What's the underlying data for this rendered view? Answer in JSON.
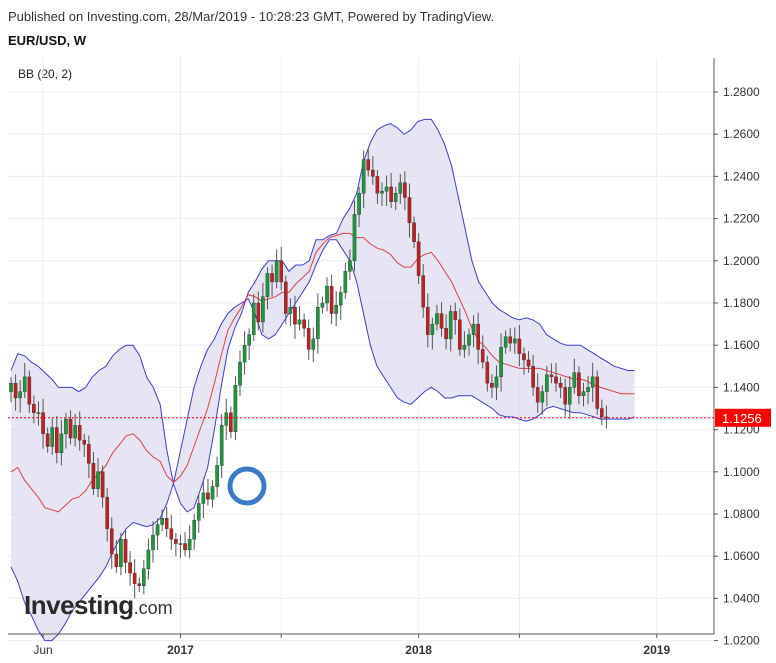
{
  "header": {
    "published": "Published on Investing.com, 28/Mar/2019 - 10:28:23 GMT, Powered by TradingView.",
    "symbol": "EUR/USD, W",
    "indicator": "BB (20, 2)"
  },
  "logo": {
    "main": "Investing",
    "suffix": ".com"
  },
  "colors": {
    "up": "#1a9a3a",
    "down": "#c41e1e",
    "band": "#3d3dd6",
    "band_fill": "#dcdcf0",
    "mid": "#e04040",
    "last_price": "#ff0000"
  },
  "chart_data": {
    "type": "candlestick",
    "title": "EUR/USD, W",
    "ylim": [
      1.014,
      1.294
    ],
    "y_ticks": [
      "1.2800",
      "1.2600",
      "1.2400",
      "1.2200",
      "1.2000",
      "1.1800",
      "1.1600",
      "1.1400",
      "1.1200",
      "1.1000",
      "1.0800",
      "1.0600",
      "1.0400",
      "1.0200"
    ],
    "x_ticks": [
      {
        "label": "Jun",
        "week": 7
      },
      {
        "label": "2017",
        "week": 37
      },
      {
        "label": "",
        "week": 59
      },
      {
        "label": "2018",
        "week": 89
      },
      {
        "label": "",
        "week": 111
      },
      {
        "label": "2019",
        "week": 141
      }
    ],
    "last_price": {
      "value": 1.1256,
      "label": "1.1256"
    },
    "candle_close": [
      1.142,
      1.135,
      1.138,
      1.145,
      1.132,
      1.128,
      1.128,
      1.118,
      1.112,
      1.121,
      1.109,
      1.118,
      1.125,
      1.116,
      1.122,
      1.115,
      1.113,
      1.104,
      1.092,
      1.1,
      1.088,
      1.073,
      1.061,
      1.055,
      1.068,
      1.057,
      1.052,
      1.047,
      1.046,
      1.054,
      1.063,
      1.07,
      1.075,
      1.078,
      1.073,
      1.068,
      1.066,
      1.066,
      1.063,
      1.068,
      1.077,
      1.085,
      1.09,
      1.087,
      1.093,
      1.103,
      1.122,
      1.128,
      1.119,
      1.141,
      1.152,
      1.16,
      1.165,
      1.18,
      1.171,
      1.183,
      1.194,
      1.19,
      1.2,
      1.19,
      1.175,
      1.178,
      1.17,
      1.172,
      1.168,
      1.158,
      1.163,
      1.178,
      1.18,
      1.188,
      1.175,
      1.179,
      1.185,
      1.195,
      1.2,
      1.222,
      1.232,
      1.248,
      1.243,
      1.24,
      1.232,
      1.233,
      1.235,
      1.228,
      1.232,
      1.237,
      1.23,
      1.218,
      1.209,
      1.193,
      1.178,
      1.165,
      1.17,
      1.175,
      1.168,
      1.163,
      1.176,
      1.172,
      1.158,
      1.16,
      1.165,
      1.17,
      1.158,
      1.152,
      1.142,
      1.14,
      1.145,
      1.159,
      1.164,
      1.161,
      1.163,
      1.156,
      1.153,
      1.15,
      1.14,
      1.133,
      1.138,
      1.146,
      1.145,
      1.142,
      1.14,
      1.132,
      1.14,
      1.147,
      1.136,
      1.138,
      1.14,
      1.145,
      1.13,
      1.126,
      1.1256
    ],
    "upper_band": [
      1.148,
      1.156,
      1.155,
      1.152,
      1.15,
      1.147,
      1.144,
      1.14,
      1.14,
      1.14,
      1.138,
      1.14,
      1.145,
      1.148,
      1.15,
      1.155,
      1.158,
      1.16,
      1.16,
      1.155,
      1.145,
      1.14,
      1.132,
      1.11,
      1.094,
      1.085,
      1.081,
      1.083,
      1.092,
      1.102,
      1.12,
      1.14,
      1.158,
      1.168,
      1.175,
      1.185,
      1.19,
      1.196,
      1.2,
      1.2,
      1.2,
      1.195,
      1.198,
      1.198,
      1.2,
      1.21,
      1.21,
      1.212,
      1.213,
      1.22,
      1.225,
      1.232,
      1.247,
      1.256,
      1.262,
      1.264,
      1.265,
      1.263,
      1.26,
      1.262,
      1.266,
      1.267,
      1.267,
      1.262,
      1.255,
      1.245,
      1.23,
      1.215,
      1.2,
      1.19,
      1.185,
      1.18,
      1.177,
      1.175,
      1.173,
      1.172,
      1.173,
      1.172,
      1.17,
      1.165,
      1.163,
      1.161,
      1.16,
      1.16,
      1.16,
      1.158,
      1.156,
      1.154,
      1.152,
      1.15,
      1.149,
      1.148,
      1.148
    ],
    "lower_band": [
      1.055,
      1.048,
      1.038,
      1.032,
      1.025,
      1.02,
      1.02,
      1.023,
      1.028,
      1.034,
      1.038,
      1.042,
      1.046,
      1.05,
      1.055,
      1.062,
      1.068,
      1.073,
      1.076,
      1.075,
      1.074,
      1.075,
      1.078,
      1.085,
      1.095,
      1.11,
      1.125,
      1.14,
      1.15,
      1.158,
      1.163,
      1.17,
      1.175,
      1.178,
      1.18,
      1.182,
      1.175,
      1.165,
      1.163,
      1.165,
      1.17,
      1.175,
      1.18,
      1.185,
      1.19,
      1.198,
      1.205,
      1.21,
      1.21,
      1.205,
      1.2,
      1.19,
      1.175,
      1.16,
      1.15,
      1.145,
      1.14,
      1.135,
      1.133,
      1.132,
      1.135,
      1.138,
      1.14,
      1.138,
      1.135,
      1.135,
      1.136,
      1.136,
      1.136,
      1.134,
      1.132,
      1.13,
      1.127,
      1.126,
      1.126,
      1.125,
      1.124,
      1.125,
      1.127,
      1.13,
      1.131,
      1.13,
      1.129,
      1.128,
      1.128,
      1.127,
      1.126,
      1.125,
      1.125,
      1.125,
      1.125,
      1.125,
      1.126
    ],
    "middle_band": [
      1.1,
      1.102,
      1.096,
      1.092,
      1.088,
      1.083,
      1.082,
      1.081,
      1.084,
      1.087,
      1.088,
      1.091,
      1.096,
      1.099,
      1.103,
      1.109,
      1.113,
      1.117,
      1.118,
      1.115,
      1.11,
      1.107,
      1.105,
      1.098,
      1.095,
      1.098,
      1.103,
      1.112,
      1.121,
      1.13,
      1.142,
      1.155,
      1.167,
      1.173,
      1.178,
      1.184,
      1.183,
      1.181,
      1.182,
      1.183,
      1.185,
      1.185,
      1.189,
      1.192,
      1.195,
      1.204,
      1.208,
      1.211,
      1.212,
      1.213,
      1.213,
      1.211,
      1.211,
      1.208,
      1.206,
      1.205,
      1.203,
      1.199,
      1.197,
      1.197,
      1.201,
      1.203,
      1.204,
      1.2,
      1.195,
      1.19,
      1.183,
      1.176,
      1.168,
      1.162,
      1.159,
      1.155,
      1.152,
      1.151,
      1.15,
      1.149,
      1.149,
      1.149,
      1.149,
      1.148,
      1.147,
      1.146,
      1.145,
      1.144,
      1.144,
      1.143,
      1.141,
      1.14,
      1.139,
      1.138,
      1.137,
      1.137,
      1.137
    ]
  }
}
